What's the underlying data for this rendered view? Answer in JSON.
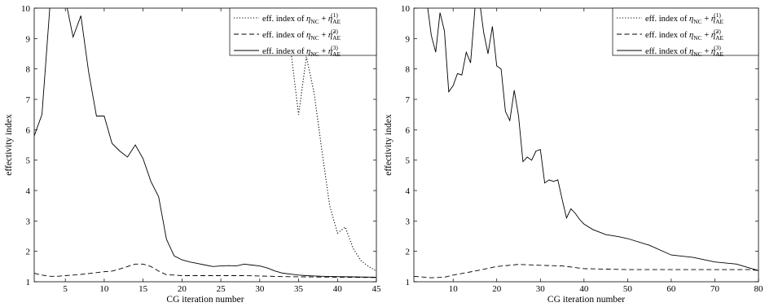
{
  "chart_data": [
    {
      "type": "line",
      "xlabel": "CG iteration number",
      "ylabel": "effectivity index",
      "xlim": [
        1,
        45
      ],
      "ylim": [
        1,
        10
      ],
      "xticks": [
        5,
        10,
        15,
        20,
        25,
        30,
        35,
        40,
        45
      ],
      "yticks": [
        1,
        2,
        3,
        4,
        5,
        6,
        7,
        8,
        9,
        10
      ],
      "legend_position": "top-right",
      "legend": [
        {
          "prefix": "eff. index of ",
          "symbol": "η",
          "sub1": "NC",
          "plus": " + ",
          "symbol2": "η",
          "sub2": "AE",
          "sup": "(1)",
          "style": "dotted"
        },
        {
          "prefix": "eff. index of ",
          "symbol": "η",
          "sub1": "NC",
          "plus": " + ",
          "symbol2": "η̂",
          "sub2": "AE",
          "sup": "(2)",
          "style": "dashed"
        },
        {
          "prefix": "eff. index of ",
          "symbol": "η",
          "sub1": "NC",
          "plus": " + ",
          "symbol2": "η",
          "sub2": "AE",
          "sup": "(3)",
          "style": "solid"
        }
      ],
      "series": [
        {
          "style": "dotted",
          "x": [
            34,
            35,
            36,
            37,
            38,
            39,
            40,
            41,
            42,
            43,
            44,
            45
          ],
          "y": [
            8.6,
            6.5,
            8.4,
            7.2,
            5.3,
            3.5,
            2.6,
            2.8,
            2.1,
            1.7,
            1.5,
            1.35
          ]
        },
        {
          "style": "dashed",
          "x": [
            1,
            2,
            3,
            4,
            5,
            6,
            7,
            8,
            9,
            10,
            11,
            12,
            13,
            14,
            15,
            16,
            17,
            18,
            19,
            20,
            22,
            25,
            28,
            30,
            33,
            36,
            40,
            45
          ],
          "y": [
            1.28,
            1.22,
            1.18,
            1.18,
            1.2,
            1.22,
            1.24,
            1.27,
            1.3,
            1.33,
            1.35,
            1.42,
            1.5,
            1.58,
            1.58,
            1.5,
            1.35,
            1.23,
            1.22,
            1.2,
            1.2,
            1.2,
            1.2,
            1.19,
            1.17,
            1.16,
            1.15,
            1.14
          ]
        },
        {
          "style": "solid",
          "x": [
            1,
            2,
            3,
            4,
            5,
            6,
            7,
            8,
            9,
            10,
            11,
            12,
            13,
            14,
            15,
            16,
            17,
            18,
            19,
            20,
            21,
            22,
            23,
            24,
            25,
            26,
            27,
            28,
            29,
            30,
            31,
            32,
            33,
            34,
            35,
            36,
            38,
            40,
            42,
            45
          ],
          "y": [
            5.8,
            6.5,
            10.0,
            10.5,
            10.3,
            9.05,
            9.75,
            7.9,
            6.45,
            6.45,
            5.55,
            5.3,
            5.1,
            5.5,
            5.05,
            4.3,
            3.8,
            2.4,
            1.85,
            1.72,
            1.65,
            1.6,
            1.55,
            1.5,
            1.52,
            1.53,
            1.52,
            1.58,
            1.55,
            1.52,
            1.45,
            1.35,
            1.28,
            1.25,
            1.22,
            1.2,
            1.18,
            1.17,
            1.16,
            1.15
          ]
        }
      ]
    },
    {
      "type": "line",
      "xlabel": "CG iteration number",
      "ylabel": "effectivity index",
      "xlim": [
        1,
        80
      ],
      "ylim": [
        1,
        10
      ],
      "xticks": [
        10,
        20,
        30,
        40,
        50,
        60,
        70,
        80
      ],
      "yticks": [
        1,
        2,
        3,
        4,
        5,
        6,
        7,
        8,
        9,
        10
      ],
      "legend_position": "top-right",
      "legend": [
        {
          "prefix": "eff. index of ",
          "symbol": "η",
          "sub1": "NC",
          "plus": " + ",
          "symbol2": "η",
          "sub2": "AE",
          "sup": "(1)",
          "style": "dotted"
        },
        {
          "prefix": "eff. index of ",
          "symbol": "η",
          "sub1": "NC",
          "plus": " + ",
          "symbol2": "η̂",
          "sub2": "AE",
          "sup": "(2)",
          "style": "dashed"
        },
        {
          "prefix": "eff. index of ",
          "symbol": "η",
          "sub1": "NC",
          "plus": " + ",
          "symbol2": "η",
          "sub2": "AE",
          "sup": "(3)",
          "style": "solid"
        }
      ],
      "series": [
        {
          "style": "dashed",
          "x": [
            1,
            5,
            8,
            10,
            15,
            20,
            25,
            30,
            35,
            40,
            50,
            60,
            70,
            78,
            80
          ],
          "y": [
            1.18,
            1.13,
            1.15,
            1.22,
            1.35,
            1.5,
            1.57,
            1.54,
            1.52,
            1.43,
            1.4,
            1.4,
            1.4,
            1.4,
            1.37
          ]
        },
        {
          "style": "solid",
          "x": [
            4,
            5,
            6,
            7,
            8,
            9,
            10,
            11,
            12,
            13,
            14,
            15,
            16,
            17,
            18,
            19,
            20,
            21,
            22,
            23,
            24,
            25,
            26,
            27,
            28,
            29,
            30,
            31,
            32,
            33,
            34,
            35,
            36,
            37,
            38,
            39,
            40,
            42,
            45,
            48,
            50,
            55,
            60,
            65,
            70,
            75,
            78,
            80
          ],
          "y": [
            10.2,
            9.1,
            8.55,
            9.85,
            9.25,
            7.25,
            7.45,
            7.85,
            7.8,
            8.55,
            8.2,
            10.0,
            10.3,
            9.2,
            8.5,
            9.4,
            8.1,
            8.0,
            6.6,
            6.3,
            7.3,
            6.45,
            4.95,
            5.1,
            5.0,
            5.3,
            5.35,
            4.25,
            4.35,
            4.3,
            4.35,
            3.7,
            3.1,
            3.4,
            3.25,
            3.05,
            2.9,
            2.72,
            2.55,
            2.48,
            2.42,
            2.2,
            1.88,
            1.8,
            1.65,
            1.58,
            1.45,
            1.37
          ]
        }
      ]
    }
  ]
}
